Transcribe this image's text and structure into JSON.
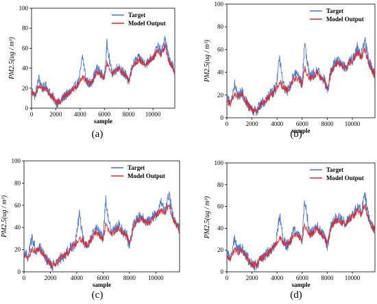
{
  "figure": {
    "captions": [
      "(a)",
      "(b)",
      "(c)",
      "(d)"
    ]
  },
  "colors": {
    "target": "#4a72c4",
    "model": "#d9262c",
    "axis": "#000000"
  },
  "chart_data": [
    {
      "type": "line",
      "panel": "a",
      "xlabel": "sample",
      "ylabel": "PM2.5(ug / m³)",
      "xlim": [
        0,
        11800
      ],
      "ylim": [
        0,
        100
      ],
      "xticks": [
        0,
        2000,
        4000,
        6000,
        8000,
        10000
      ],
      "yticks": [
        0,
        20,
        40,
        60,
        80,
        100
      ],
      "legend": "top-right",
      "series": [
        {
          "name": "Target",
          "x": [
            0,
            300,
            600,
            900,
            1200,
            1500,
            1800,
            2100,
            2400,
            2700,
            3000,
            3300,
            3600,
            3900,
            4200,
            4500,
            4800,
            5100,
            5400,
            5700,
            6000,
            6200,
            6600,
            6900,
            7200,
            7500,
            7800,
            8000,
            8300,
            8600,
            8900,
            9200,
            9500,
            9800,
            10100,
            10400,
            10700,
            11000,
            11300,
            11600,
            11800
          ],
          "values": [
            18,
            12,
            30,
            20,
            22,
            15,
            10,
            5,
            6,
            12,
            14,
            18,
            22,
            26,
            52,
            28,
            24,
            30,
            40,
            35,
            30,
            65,
            35,
            38,
            42,
            36,
            33,
            25,
            42,
            48,
            50,
            46,
            45,
            50,
            52,
            62,
            55,
            70,
            50,
            42,
            38
          ]
        },
        {
          "name": "Model Output",
          "x": [
            0,
            300,
            600,
            900,
            1200,
            1500,
            1800,
            2100,
            2400,
            2700,
            3000,
            3300,
            3600,
            3900,
            4200,
            4500,
            4800,
            5100,
            5400,
            5700,
            6000,
            6200,
            6600,
            6900,
            7200,
            7500,
            7800,
            8000,
            8300,
            8600,
            8900,
            9200,
            9500,
            9800,
            10100,
            10400,
            10700,
            11000,
            11300,
            11600,
            11800
          ],
          "values": [
            16,
            13,
            22,
            19,
            20,
            14,
            10,
            6,
            7,
            12,
            14,
            17,
            21,
            25,
            32,
            27,
            24,
            29,
            36,
            33,
            30,
            45,
            34,
            36,
            40,
            35,
            32,
            27,
            40,
            46,
            48,
            45,
            44,
            49,
            51,
            58,
            53,
            62,
            48,
            41,
            37
          ]
        }
      ]
    },
    {
      "type": "line",
      "panel": "b",
      "xlabel": "sample",
      "ylabel": "PM2.5(ug / m³)",
      "xlim": [
        0,
        11800
      ],
      "ylim": [
        0,
        100
      ],
      "xticks": [
        0,
        2000,
        4000,
        6000,
        8000,
        10000
      ],
      "yticks": [
        0,
        20,
        40,
        60,
        80,
        100
      ],
      "legend": "top-right",
      "series": [
        {
          "name": "Target",
          "x": [
            0,
            300,
            600,
            900,
            1200,
            1500,
            1800,
            2100,
            2400,
            2700,
            3000,
            3300,
            3600,
            3900,
            4200,
            4500,
            4800,
            5100,
            5400,
            5700,
            6000,
            6200,
            6600,
            6900,
            7200,
            7500,
            7800,
            8000,
            8300,
            8600,
            8900,
            9200,
            9500,
            9800,
            10100,
            10400,
            10700,
            11000,
            11300,
            11600,
            11800
          ],
          "values": [
            18,
            12,
            30,
            20,
            22,
            15,
            10,
            5,
            6,
            12,
            14,
            18,
            22,
            26,
            52,
            28,
            24,
            30,
            40,
            35,
            30,
            65,
            35,
            38,
            42,
            36,
            33,
            22,
            42,
            48,
            50,
            46,
            45,
            50,
            52,
            62,
            55,
            70,
            50,
            42,
            38
          ]
        },
        {
          "name": "Model Output",
          "x": [
            0,
            300,
            600,
            900,
            1200,
            1500,
            1800,
            2100,
            2400,
            2700,
            3000,
            3300,
            3600,
            3900,
            4200,
            4500,
            4800,
            5100,
            5400,
            5700,
            6000,
            6200,
            6600,
            6900,
            7200,
            7500,
            7800,
            8000,
            8300,
            8600,
            8900,
            9200,
            9500,
            9800,
            10100,
            10400,
            10700,
            11000,
            11300,
            11600,
            11800
          ],
          "values": [
            15,
            12,
            21,
            18,
            20,
            14,
            10,
            6,
            7,
            12,
            14,
            17,
            21,
            25,
            31,
            27,
            24,
            29,
            35,
            33,
            30,
            44,
            34,
            36,
            40,
            35,
            32,
            26,
            40,
            46,
            48,
            45,
            44,
            49,
            51,
            58,
            53,
            60,
            48,
            41,
            37
          ]
        }
      ]
    },
    {
      "type": "line",
      "panel": "c",
      "xlabel": "sample",
      "ylabel": "PM2.5(ug / m³)",
      "xlim": [
        0,
        11800
      ],
      "ylim": [
        0,
        100
      ],
      "xticks": [
        0,
        2000,
        4000,
        6000,
        8000,
        10000
      ],
      "yticks": [
        0,
        20,
        40,
        60,
        80,
        100
      ],
      "legend": "top-right",
      "series": [
        {
          "name": "Target",
          "x": [
            0,
            300,
            600,
            900,
            1200,
            1500,
            1800,
            2100,
            2400,
            2700,
            3000,
            3300,
            3600,
            3900,
            4200,
            4500,
            4800,
            5100,
            5400,
            5700,
            6000,
            6200,
            6600,
            6900,
            7200,
            7500,
            7800,
            8000,
            8300,
            8600,
            8900,
            9200,
            9500,
            9800,
            10100,
            10400,
            10700,
            11000,
            11300,
            11600,
            11800
          ],
          "values": [
            18,
            12,
            30,
            20,
            22,
            15,
            10,
            5,
            6,
            12,
            14,
            18,
            22,
            26,
            52,
            28,
            24,
            30,
            40,
            35,
            30,
            65,
            35,
            38,
            42,
            36,
            33,
            22,
            42,
            48,
            50,
            46,
            45,
            50,
            52,
            62,
            55,
            70,
            50,
            42,
            38
          ]
        },
        {
          "name": "Model Output",
          "x": [
            0,
            300,
            600,
            900,
            1200,
            1500,
            1800,
            2100,
            2400,
            2700,
            3000,
            3300,
            3600,
            3900,
            4200,
            4500,
            4800,
            5100,
            5400,
            5700,
            6000,
            6200,
            6600,
            6900,
            7200,
            7500,
            7800,
            8000,
            8300,
            8600,
            8900,
            9200,
            9500,
            9800,
            10100,
            10400,
            10700,
            11000,
            11300,
            11600,
            11800
          ],
          "values": [
            16,
            12,
            20,
            18,
            20,
            14,
            10,
            6,
            7,
            12,
            14,
            17,
            21,
            25,
            30,
            27,
            24,
            29,
            35,
            33,
            30,
            42,
            34,
            36,
            40,
            35,
            32,
            26,
            40,
            46,
            48,
            45,
            44,
            49,
            51,
            56,
            53,
            60,
            48,
            41,
            37
          ]
        }
      ]
    },
    {
      "type": "line",
      "panel": "d",
      "xlabel": "sample",
      "ylabel": "PM2.5(ug / m³)",
      "xlim": [
        0,
        11800
      ],
      "ylim": [
        0,
        100
      ],
      "xticks": [
        0,
        2000,
        4000,
        6000,
        8000,
        10000
      ],
      "yticks": [
        0,
        20,
        40,
        60,
        80,
        100
      ],
      "legend": "top-right",
      "series": [
        {
          "name": "Target",
          "x": [
            0,
            300,
            600,
            900,
            1200,
            1500,
            1800,
            2100,
            2400,
            2700,
            3000,
            3300,
            3600,
            3900,
            4200,
            4500,
            4800,
            5100,
            5400,
            5700,
            6000,
            6200,
            6600,
            6900,
            7200,
            7500,
            7800,
            8000,
            8300,
            8600,
            8900,
            9200,
            9500,
            9800,
            10100,
            10400,
            10700,
            11000,
            11300,
            11600,
            11800
          ],
          "values": [
            18,
            12,
            30,
            20,
            22,
            15,
            10,
            5,
            6,
            12,
            14,
            18,
            22,
            26,
            52,
            28,
            24,
            30,
            40,
            35,
            30,
            65,
            35,
            38,
            42,
            36,
            33,
            22,
            42,
            48,
            50,
            46,
            45,
            50,
            52,
            62,
            55,
            70,
            50,
            42,
            38
          ]
        },
        {
          "name": "Model Output",
          "x": [
            0,
            300,
            600,
            900,
            1200,
            1500,
            1800,
            2100,
            2400,
            2700,
            3000,
            3300,
            3600,
            3900,
            4200,
            4500,
            4800,
            5100,
            5400,
            5700,
            6000,
            6200,
            6600,
            6900,
            7200,
            7500,
            7800,
            8000,
            8300,
            8600,
            8900,
            9200,
            9500,
            9800,
            10100,
            10400,
            10700,
            11000,
            11300,
            11600,
            11800
          ],
          "values": [
            15,
            12,
            21,
            18,
            20,
            14,
            10,
            6,
            7,
            12,
            14,
            17,
            21,
            25,
            31,
            27,
            24,
            29,
            35,
            33,
            30,
            43,
            34,
            36,
            40,
            35,
            32,
            26,
            40,
            46,
            48,
            45,
            44,
            49,
            51,
            57,
            53,
            61,
            48,
            41,
            37
          ]
        }
      ]
    }
  ]
}
